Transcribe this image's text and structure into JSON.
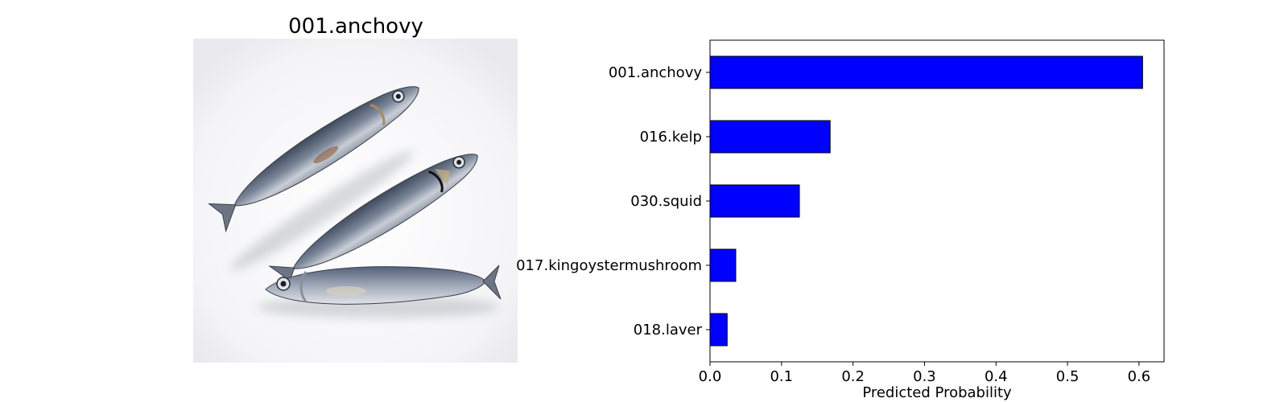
{
  "image_panel": {
    "title": "001.anchovy",
    "subject_icon": "anchovy-fish-photo"
  },
  "chart_data": {
    "type": "bar",
    "orientation": "horizontal",
    "categories": [
      "001.anchovy",
      "016.kelp",
      "030.squid",
      "017.kingoystermushroom",
      "018.laver"
    ],
    "values": [
      0.605,
      0.168,
      0.125,
      0.036,
      0.024
    ],
    "xlabel": "Predicted Probability",
    "ylabel": "",
    "xlim": [
      0,
      0.635
    ],
    "xticks": [
      "0.0",
      "0.1",
      "0.2",
      "0.3",
      "0.4",
      "0.5",
      "0.6"
    ],
    "bar_color": "#0000ff",
    "edge_color": "#000000",
    "grid": false
  }
}
